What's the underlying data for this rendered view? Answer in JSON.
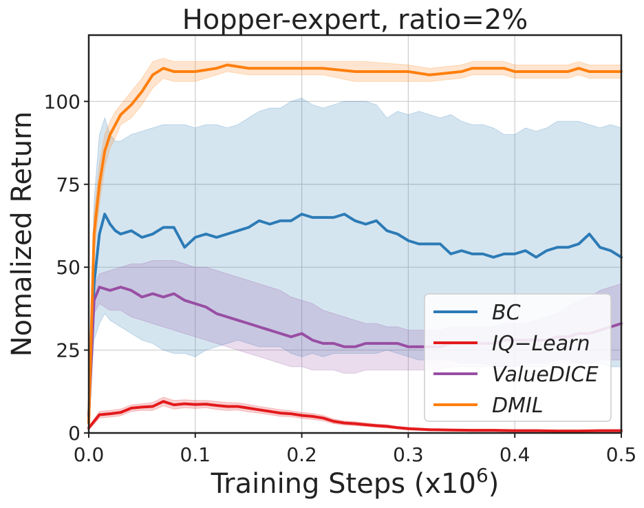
{
  "chart_data": {
    "type": "line",
    "title": "Hopper-expert, ratio=2%",
    "xlabel": "Training Steps (x10",
    "xlabel_exponent": "6",
    "xlabel_close": ")",
    "ylabel": "Nomalized Return",
    "xlim": [
      0.0,
      0.5
    ],
    "ylim": [
      0,
      120
    ],
    "x_ticks": [
      0.0,
      0.1,
      0.2,
      0.3,
      0.4,
      0.5
    ],
    "x_tick_labels": [
      "0.0",
      "0.1",
      "0.2",
      "0.3",
      "0.4",
      "0.5"
    ],
    "y_ticks": [
      0,
      25,
      50,
      75,
      100
    ],
    "y_tick_labels": [
      "0",
      "25",
      "50",
      "75",
      "100"
    ],
    "grid": true,
    "legend_position": "lower-right",
    "series": [
      {
        "name": "BC",
        "color": "#2c7bb6",
        "x": [
          0.0,
          0.005,
          0.01,
          0.015,
          0.02,
          0.025,
          0.03,
          0.04,
          0.05,
          0.06,
          0.07,
          0.08,
          0.09,
          0.1,
          0.11,
          0.12,
          0.13,
          0.14,
          0.15,
          0.16,
          0.17,
          0.18,
          0.19,
          0.2,
          0.21,
          0.22,
          0.23,
          0.24,
          0.25,
          0.26,
          0.27,
          0.28,
          0.29,
          0.3,
          0.31,
          0.32,
          0.33,
          0.34,
          0.35,
          0.36,
          0.37,
          0.38,
          0.39,
          0.4,
          0.41,
          0.42,
          0.43,
          0.44,
          0.45,
          0.46,
          0.47,
          0.48,
          0.49,
          0.5
        ],
        "values": [
          5,
          45,
          60,
          66,
          63,
          61,
          60,
          61,
          59,
          60,
          62,
          62,
          56,
          59,
          60,
          59,
          60,
          61,
          62,
          64,
          63,
          64,
          64,
          66,
          65,
          65,
          65,
          66,
          64,
          63,
          64,
          61,
          60,
          58,
          57,
          57,
          57,
          54,
          55,
          54,
          54,
          53,
          54,
          54,
          55,
          53,
          55,
          56,
          56,
          57,
          60,
          56,
          55,
          53
        ],
        "upper": [
          5,
          70,
          90,
          95,
          90,
          88,
          88,
          90,
          91,
          92,
          93,
          93,
          93,
          92,
          93,
          93,
          92,
          93,
          95,
          97,
          98,
          98,
          100,
          101,
          99,
          98,
          99,
          100,
          100,
          100,
          99,
          95,
          97,
          96,
          97,
          96,
          95,
          96,
          94,
          93,
          93,
          92,
          90,
          90,
          92,
          91,
          92,
          94,
          94,
          94,
          93,
          92,
          93,
          92
        ],
        "lower": [
          5,
          28,
          33,
          36,
          34,
          33,
          32,
          30,
          28,
          27,
          25,
          24,
          24,
          23,
          25,
          26,
          27,
          28,
          27,
          26,
          26,
          26,
          24,
          23,
          24,
          23,
          24,
          24,
          24,
          24,
          24,
          25,
          24,
          23,
          22,
          22,
          22,
          22,
          21,
          21,
          21,
          20,
          20,
          20,
          21,
          21,
          21,
          22,
          22,
          21,
          21,
          21,
          20,
          20
        ]
      },
      {
        "name": "IQ−Learn",
        "color": "#e31a1c",
        "x": [
          0.0,
          0.01,
          0.02,
          0.03,
          0.04,
          0.05,
          0.06,
          0.07,
          0.08,
          0.09,
          0.1,
          0.11,
          0.12,
          0.13,
          0.14,
          0.15,
          0.16,
          0.17,
          0.18,
          0.19,
          0.2,
          0.21,
          0.22,
          0.23,
          0.24,
          0.25,
          0.26,
          0.27,
          0.28,
          0.29,
          0.3,
          0.32,
          0.34,
          0.36,
          0.38,
          0.4,
          0.42,
          0.44,
          0.46,
          0.48,
          0.5
        ],
        "values": [
          1.5,
          5.5,
          5.8,
          6.2,
          7.5,
          7.8,
          8.0,
          9.5,
          8.5,
          8.8,
          8.6,
          8.7,
          8.3,
          8.0,
          8.0,
          7.5,
          7.0,
          6.5,
          6.0,
          5.8,
          5.3,
          5.0,
          4.5,
          3.5,
          3.0,
          2.8,
          2.5,
          2.2,
          2.0,
          1.6,
          1.3,
          1.0,
          0.9,
          0.8,
          0.8,
          0.7,
          0.7,
          0.6,
          0.6,
          0.7,
          0.7
        ],
        "upper": [
          2.0,
          6.5,
          6.8,
          7.2,
          8.5,
          8.8,
          9.2,
          10.8,
          9.8,
          10.0,
          9.8,
          9.8,
          9.5,
          9.2,
          9.1,
          8.6,
          8.0,
          7.5,
          7.0,
          6.7,
          6.2,
          5.9,
          5.3,
          4.2,
          3.6,
          3.4,
          3.0,
          2.7,
          2.5,
          2.0,
          1.7,
          1.3,
          1.2,
          1.1,
          1.1,
          1.0,
          1.0,
          0.9,
          0.9,
          1.0,
          1.0
        ],
        "lower": [
          1.0,
          4.5,
          4.8,
          5.2,
          6.5,
          6.8,
          6.8,
          8.2,
          7.2,
          7.6,
          7.4,
          7.6,
          7.1,
          6.8,
          6.9,
          6.4,
          6.0,
          5.5,
          5.0,
          4.9,
          4.4,
          4.1,
          3.7,
          2.8,
          2.4,
          2.2,
          2.0,
          1.7,
          1.5,
          1.2,
          0.9,
          0.7,
          0.6,
          0.5,
          0.5,
          0.4,
          0.4,
          0.3,
          0.3,
          0.4,
          0.4
        ]
      },
      {
        "name": "ValueDICE",
        "color": "#984ea3",
        "x": [
          0.0,
          0.005,
          0.01,
          0.02,
          0.03,
          0.04,
          0.05,
          0.06,
          0.07,
          0.08,
          0.09,
          0.1,
          0.11,
          0.12,
          0.13,
          0.14,
          0.15,
          0.16,
          0.17,
          0.18,
          0.19,
          0.2,
          0.21,
          0.22,
          0.23,
          0.24,
          0.25,
          0.26,
          0.27,
          0.28,
          0.29,
          0.3,
          0.31,
          0.32,
          0.33,
          0.34,
          0.35,
          0.36,
          0.37,
          0.38,
          0.39,
          0.4,
          0.41,
          0.42,
          0.43,
          0.44,
          0.45,
          0.46,
          0.47,
          0.48,
          0.49,
          0.5
        ],
        "values": [
          5,
          40,
          44,
          43,
          44,
          43,
          41,
          42,
          41,
          42,
          40,
          39,
          38,
          36,
          35,
          34,
          33,
          32,
          31,
          30,
          29,
          30,
          28,
          27,
          27,
          26,
          26,
          27,
          27,
          27,
          27,
          26,
          26,
          26,
          26,
          27,
          27,
          27,
          27,
          27,
          28,
          28,
          28,
          28,
          28,
          29,
          29,
          30,
          30,
          31,
          32,
          33
        ],
        "upper": [
          5,
          44,
          48,
          49,
          50,
          51,
          51,
          52,
          52,
          52,
          51,
          50,
          50,
          49,
          48,
          47,
          46,
          45,
          44,
          43,
          41,
          40,
          39,
          37,
          36,
          35,
          34,
          33,
          33,
          32,
          32,
          31,
          31,
          31,
          31,
          32,
          32,
          32,
          32,
          32,
          33,
          33,
          33,
          34,
          35,
          36,
          38,
          40,
          41,
          43,
          44,
          45
        ],
        "lower": [
          5,
          36,
          39,
          37,
          37,
          35,
          34,
          33,
          32,
          31,
          30,
          29,
          28,
          27,
          26,
          25,
          24,
          23,
          22,
          21,
          20,
          20,
          19,
          19,
          19,
          18,
          18,
          19,
          19,
          19,
          19,
          19,
          19,
          19,
          19,
          20,
          20,
          20,
          20,
          20,
          20,
          20,
          20,
          20,
          20,
          21,
          21,
          21,
          21,
          22,
          22,
          22
        ]
      },
      {
        "name": "DMIL",
        "color": "#ff7f0e",
        "x": [
          0.0,
          0.005,
          0.01,
          0.015,
          0.02,
          0.025,
          0.03,
          0.04,
          0.05,
          0.06,
          0.07,
          0.08,
          0.09,
          0.1,
          0.12,
          0.13,
          0.15,
          0.17,
          0.2,
          0.22,
          0.25,
          0.26,
          0.3,
          0.32,
          0.35,
          0.36,
          0.38,
          0.39,
          0.4,
          0.41,
          0.45,
          0.46,
          0.47,
          0.5
        ],
        "values": [
          3,
          60,
          75,
          85,
          90,
          93,
          96,
          99,
          103,
          108,
          110,
          109,
          109,
          109,
          110,
          111,
          110,
          110,
          110,
          110,
          109,
          109,
          109,
          108,
          109,
          110,
          110,
          110,
          109,
          109,
          109,
          110,
          109,
          109
        ],
        "upper": [
          4,
          66,
          81,
          90,
          94,
          97,
          99,
          103,
          107,
          112,
          113,
          112,
          112,
          112,
          112,
          112,
          112,
          112,
          112,
          112,
          112,
          112,
          111,
          110,
          111,
          112,
          112,
          112,
          111,
          111,
          111,
          112,
          111,
          111
        ],
        "lower": [
          2,
          54,
          69,
          80,
          86,
          89,
          93,
          95,
          99,
          104,
          107,
          106,
          106,
          106,
          108,
          109,
          108,
          108,
          108,
          108,
          106,
          106,
          106,
          106,
          107,
          108,
          108,
          108,
          107,
          107,
          107,
          108,
          107,
          107
        ]
      }
    ],
    "legend": [
      {
        "label": "BC",
        "color": "#2c7bb6"
      },
      {
        "label": "IQ−Learn",
        "color": "#e31a1c"
      },
      {
        "label": "ValueDICE",
        "color": "#984ea3"
      },
      {
        "label": "DMIL",
        "color": "#ff7f0e"
      }
    ]
  }
}
